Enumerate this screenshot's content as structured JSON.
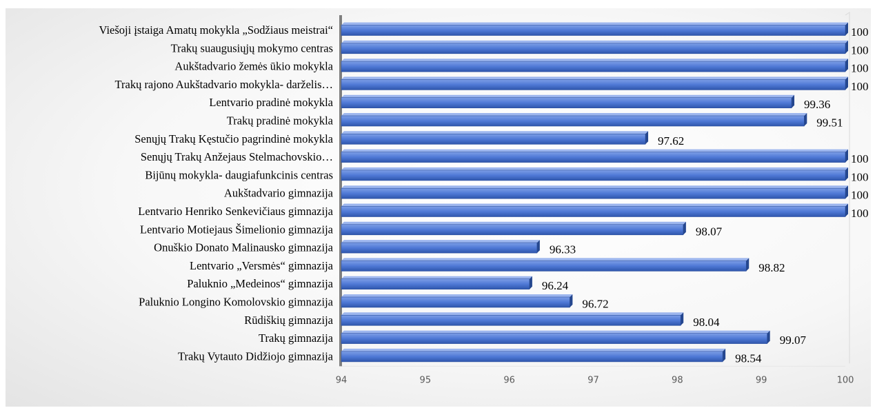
{
  "chart_data": {
    "type": "bar",
    "orientation": "horizontal",
    "title": "",
    "xlabel": "",
    "ylabel": "",
    "categories": [
      "Viešoji įstaiga Amatų mokykla „Sodžiaus meistrai“",
      "Trakų suaugusiųjų mokymo centras",
      "Aukštadvario žemės ūkio mokykla",
      "Trakų rajono Aukštadvario mokykla- darželis…",
      "Lentvario pradinė mokykla",
      "Trakų pradinė mokykla",
      "Senųjų Trakų Kęstučio pagrindinė mokykla",
      "Senųjų Trakų Anžejaus Stelmachovskio…",
      "Bijūnų mokykla- daugiafunkcinis centras",
      "Aukštadvario gimnazija",
      "Lentvario Henriko Senkevičiaus gimnazija",
      "Lentvario Motiejaus Šimelionio gimnazija",
      "Onuškio Donato Malinausko gimnazija",
      "Lentvario „Versmės“ gimnazija",
      "Paluknio „Medeinos“ gimnazija",
      "Paluknio Longino Komolovskio gimnazija",
      "Rūdiškių gimnazija",
      "Trakų gimnazija",
      "Trakų Vytauto Didžiojo gimnazija"
    ],
    "values": [
      100,
      100,
      100,
      100,
      99.36,
      99.51,
      97.62,
      100,
      100,
      100,
      100,
      98.07,
      96.33,
      98.82,
      96.24,
      96.72,
      98.04,
      99.07,
      98.54
    ],
    "value_labels": [
      "100",
      "100",
      "100",
      "100",
      "99.36",
      "99.51",
      "97.62",
      "100",
      "100",
      "100",
      "100",
      "98.07",
      "96.33",
      "98.82",
      "96.24",
      "96.72",
      "98.04",
      "99.07",
      "98.54"
    ],
    "xlim": [
      94,
      100
    ],
    "xticks": [
      "94",
      "95",
      "96",
      "97",
      "98",
      "99",
      "100"
    ],
    "grid": false,
    "legend": "none",
    "colors": {
      "bar_light": "#7d9ee6",
      "bar_mid": "#4f79d6",
      "bar_dark": "#2f56ac",
      "bar_top": "#9db6ee",
      "bar_side": "#25478f",
      "axis": "#7f7f7f"
    }
  }
}
